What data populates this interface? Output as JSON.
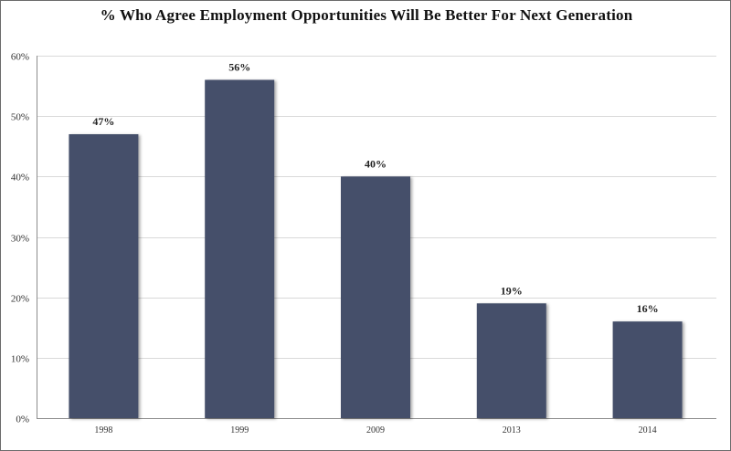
{
  "chart_data": {
    "type": "bar",
    "title": "% Who Agree Employment Opportunities Will Be Better For Next Generation",
    "categories": [
      "1998",
      "1999",
      "2009",
      "2013",
      "2014"
    ],
    "values": [
      47,
      56,
      40,
      19,
      16
    ],
    "data_labels": [
      "47%",
      "56%",
      "40%",
      "19%",
      "16%"
    ],
    "ylim": [
      0,
      60
    ],
    "yticks": [
      0,
      10,
      20,
      30,
      40,
      50,
      60
    ],
    "ytick_labels": [
      "0%",
      "10%",
      "20%",
      "30%",
      "40%",
      "50%",
      "60%"
    ],
    "grid": true,
    "legend": "none",
    "colors": {
      "bar": "#44506a",
      "grid": "#d9d9d9",
      "axis": "#8c8c8c"
    }
  }
}
